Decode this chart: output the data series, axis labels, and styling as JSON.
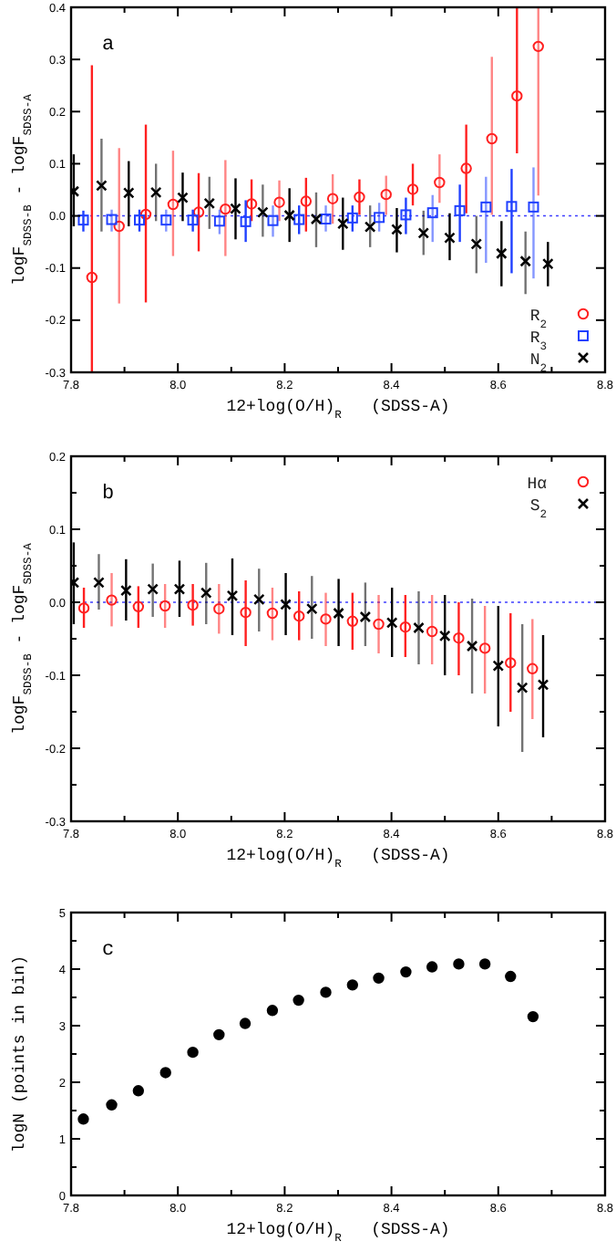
{
  "chart_data": [
    {
      "type": "scatter",
      "xlabel": "12+log(O/H)$_{R}$   (SDSS-A)",
      "ylabel": "logF$_{SDSS-B}$ - logF$_{SDSS-A}$",
      "annotations": [
        "a"
      ],
      "legend": "bottom right",
      "grid": false,
      "xlim": [
        7.8,
        8.8
      ],
      "xticks": [
        7.8,
        {
          "value": 7.9,
          "label": null
        },
        "8.0",
        {
          "value": 8.1,
          "label": null
        },
        8.2,
        {
          "value": 8.3,
          "label": null
        },
        8.4,
        {
          "value": 8.5,
          "label": null
        },
        8.6,
        {
          "value": 8.7,
          "label": null
        },
        8.8
      ],
      "ylim": [
        -0.3,
        0.4
      ],
      "yticks": [
        -0.3,
        -0.2,
        -0.1,
        "0.0",
        0.1,
        0.2,
        0.3,
        0.4
      ],
      "ref_lines": [
        {
          "axis": "y",
          "value": 0,
          "color": "#4040ff",
          "line_style": "dotted"
        }
      ],
      "series": [
        {
          "name": "R$_{2}$",
          "color": "#ff2020",
          "marker": "circle",
          "x": [
            7.839,
            7.89,
            7.94,
            7.991,
            8.039,
            8.089,
            8.138,
            8.19,
            8.24,
            8.29,
            8.34,
            8.39,
            8.44,
            8.49,
            8.54,
            8.588,
            8.635,
            8.675
          ],
          "values": [
            -0.118,
            -0.02,
            0.003,
            0.022,
            0.007,
            0.013,
            0.023,
            0.026,
            0.028,
            0.033,
            0.036,
            0.041,
            0.051,
            0.064,
            0.091,
            0.148,
            0.23,
            0.325
          ],
          "errors": [
            [
              -0.3,
              0.289
            ],
            [
              -0.168,
              0.13
            ],
            [
              -0.166,
              0.175
            ],
            [
              -0.077,
              0.125
            ],
            [
              -0.068,
              0.082
            ],
            [
              -0.077,
              0.107
            ],
            [
              -0.01,
              0.07
            ],
            [
              -0.01,
              0.068
            ],
            [
              -0.03,
              0.073
            ],
            [
              -0.015,
              0.08
            ],
            [
              0.002,
              0.07
            ],
            [
              0.002,
              0.077
            ],
            [
              0.02,
              0.1
            ],
            [
              0.025,
              0.118
            ],
            [
              0.005,
              0.175
            ],
            [
              0.002,
              0.305
            ],
            [
              0.12,
              0.4
            ],
            [
              0.039,
              0.4
            ]
          ]
        },
        {
          "name": "R$_{3}$",
          "color": "#2040ff",
          "marker": "square",
          "x": [
            7.823,
            7.876,
            7.928,
            7.978,
            8.028,
            8.078,
            8.127,
            8.178,
            8.227,
            8.277,
            8.327,
            8.377,
            8.427,
            8.477,
            8.528,
            8.577,
            8.625,
            8.666
          ],
          "values": [
            -0.008,
            -0.007,
            -0.008,
            -0.008,
            -0.008,
            -0.01,
            -0.011,
            -0.009,
            -0.007,
            -0.006,
            -0.004,
            -0.003,
            0.002,
            0.006,
            0.01,
            0.017,
            0.018,
            0.017
          ],
          "errors": [
            [
              -0.03,
              0.01
            ],
            [
              -0.03,
              0.012
            ],
            [
              -0.03,
              0.012
            ],
            [
              -0.03,
              0.012
            ],
            [
              -0.03,
              0.012
            ],
            [
              -0.035,
              0.012
            ],
            [
              -0.05,
              0.03
            ],
            [
              -0.04,
              0.02
            ],
            [
              -0.035,
              0.02
            ],
            [
              -0.03,
              0.02
            ],
            [
              -0.03,
              0.02
            ],
            [
              -0.03,
              0.025
            ],
            [
              -0.035,
              0.035
            ],
            [
              -0.05,
              0.04
            ],
            [
              -0.05,
              0.06
            ],
            [
              -0.09,
              0.075
            ],
            [
              -0.11,
              0.09
            ],
            [
              -0.12,
              0.093
            ]
          ]
        },
        {
          "name": "N$_{2}$",
          "color": "#000000",
          "marker": "cross",
          "x": [
            7.805,
            7.857,
            7.908,
            7.959,
            8.009,
            8.059,
            8.108,
            8.159,
            8.209,
            8.259,
            8.309,
            8.36,
            8.41,
            8.46,
            8.509,
            8.559,
            8.606,
            8.651,
            8.693
          ],
          "values": [
            0.047,
            0.058,
            0.044,
            0.045,
            0.035,
            0.024,
            0.014,
            0.007,
            0.001,
            -0.006,
            -0.015,
            -0.021,
            -0.026,
            -0.033,
            -0.042,
            -0.054,
            -0.072,
            -0.087,
            -0.092
          ],
          "errors": [
            [
              -0.02,
              0.118
            ],
            [
              -0.03,
              0.148
            ],
            [
              -0.02,
              0.105
            ],
            [
              -0.01,
              0.1
            ],
            [
              -0.01,
              0.083
            ],
            [
              -0.025,
              0.075
            ],
            [
              -0.045,
              0.072
            ],
            [
              -0.04,
              0.06
            ],
            [
              -0.05,
              0.053
            ],
            [
              -0.06,
              0.045
            ],
            [
              -0.065,
              0.035
            ],
            [
              -0.06,
              0.02
            ],
            [
              -0.07,
              0.015
            ],
            [
              -0.075,
              0.01
            ],
            [
              -0.085,
              0.005
            ],
            [
              -0.11,
              0.0
            ],
            [
              -0.135,
              -0.01
            ],
            [
              -0.15,
              -0.03
            ],
            [
              -0.135,
              -0.05
            ]
          ]
        }
      ]
    },
    {
      "type": "scatter",
      "xlabel": "12+log(O/H)$_{R}$   (SDSS-A)",
      "ylabel": "logF$_{SDSS-B}$ - logF$_{SDSS-A}$",
      "annotations": [
        "b"
      ],
      "legend": "top right",
      "grid": false,
      "xlim": [
        7.8,
        8.8
      ],
      "xticks": [
        7.8,
        {
          "value": 7.9,
          "label": null
        },
        "8.0",
        {
          "value": 8.1,
          "label": null
        },
        8.2,
        {
          "value": 8.3,
          "label": null
        },
        8.4,
        {
          "value": 8.5,
          "label": null
        },
        8.6,
        {
          "value": 8.7,
          "label": null
        },
        8.8
      ],
      "ylim": [
        -0.3,
        0.2
      ],
      "yticks": [
        -0.3,
        {
          "value": -0.25,
          "label": null
        },
        -0.2,
        {
          "value": -0.15,
          "label": null
        },
        -0.1,
        {
          "value": -0.05,
          "label": null
        },
        "0.0",
        {
          "value": 0.05,
          "label": null
        },
        0.1,
        {
          "value": 0.15,
          "label": null
        },
        0.2
      ],
      "ref_lines": [
        {
          "axis": "y",
          "value": 0,
          "color": "#4040ff",
          "line_style": "dotted"
        }
      ],
      "series": [
        {
          "name": "Hα",
          "color": "#ff2020",
          "marker": "circle",
          "x": [
            7.824,
            7.876,
            7.926,
            7.976,
            8.028,
            8.077,
            8.127,
            8.177,
            8.227,
            8.277,
            8.327,
            8.376,
            8.426,
            8.476,
            8.526,
            8.575,
            8.623,
            8.664
          ],
          "values": [
            -0.008,
            0.003,
            -0.006,
            -0.005,
            -0.004,
            -0.009,
            -0.014,
            -0.015,
            -0.019,
            -0.023,
            -0.026,
            -0.03,
            -0.034,
            -0.04,
            -0.049,
            -0.063,
            -0.083,
            -0.091
          ],
          "errors": [
            [
              -0.035,
              0.02
            ],
            [
              -0.033,
              0.04
            ],
            [
              -0.035,
              0.022
            ],
            [
              -0.035,
              0.025
            ],
            [
              -0.032,
              0.025
            ],
            [
              -0.043,
              0.025
            ],
            [
              -0.06,
              0.03
            ],
            [
              -0.052,
              0.02
            ],
            [
              -0.052,
              0.015
            ],
            [
              -0.06,
              0.013
            ],
            [
              -0.065,
              0.013
            ],
            [
              -0.07,
              0.01
            ],
            [
              -0.075,
              0.01
            ],
            [
              -0.085,
              0.01
            ],
            [
              -0.1,
              0.0
            ],
            [
              -0.125,
              -0.005
            ],
            [
              -0.15,
              -0.015
            ],
            [
              -0.16,
              -0.023
            ]
          ]
        },
        {
          "name": "S$_{2}$",
          "color": "#000000",
          "marker": "cross",
          "x": [
            7.805,
            7.852,
            7.903,
            7.953,
            8.003,
            8.053,
            8.102,
            8.152,
            8.202,
            8.251,
            8.301,
            8.351,
            8.401,
            8.451,
            8.5,
            8.551,
            8.6,
            8.645,
            8.684
          ],
          "values": [
            0.027,
            0.027,
            0.016,
            0.018,
            0.018,
            0.013,
            0.009,
            0.004,
            -0.003,
            -0.009,
            -0.015,
            -0.02,
            -0.028,
            -0.035,
            -0.046,
            -0.06,
            -0.087,
            -0.117,
            -0.113
          ],
          "errors": [
            [
              -0.03,
              0.082
            ],
            [
              -0.01,
              0.066
            ],
            [
              -0.025,
              0.059
            ],
            [
              -0.02,
              0.053
            ],
            [
              -0.02,
              0.057
            ],
            [
              -0.03,
              0.054
            ],
            [
              -0.045,
              0.06
            ],
            [
              -0.04,
              0.046
            ],
            [
              -0.045,
              0.04
            ],
            [
              -0.05,
              0.036
            ],
            [
              -0.06,
              0.032
            ],
            [
              -0.06,
              0.027
            ],
            [
              -0.075,
              0.02
            ],
            [
              -0.085,
              0.015
            ],
            [
              -0.1,
              0.01
            ],
            [
              -0.125,
              0.005
            ],
            [
              -0.17,
              -0.005
            ],
            [
              -0.205,
              -0.03
            ],
            [
              -0.185,
              -0.045
            ]
          ]
        }
      ]
    },
    {
      "type": "scatter",
      "xlabel": "12+log(O/H)$_{R}$   (SDSS-A)",
      "ylabel": "logN (points in bin)",
      "annotations": [
        "c"
      ],
      "grid": false,
      "marker": "circle",
      "xlim": [
        7.8,
        8.8
      ],
      "xticks": [
        7.8,
        {
          "value": 7.9,
          "label": null
        },
        "8.0",
        {
          "value": 8.1,
          "label": null
        },
        8.2,
        {
          "value": 8.3,
          "label": null
        },
        8.4,
        {
          "value": 8.5,
          "label": null
        },
        8.6,
        {
          "value": 8.7,
          "label": null
        },
        8.8
      ],
      "ylim": [
        0,
        5
      ],
      "yticks": [
        0,
        {
          "value": 0.5,
          "label": null
        },
        1,
        {
          "value": 1.5,
          "label": null
        },
        2,
        {
          "value": 2.5,
          "label": null
        },
        3,
        {
          "value": 3.5,
          "label": null
        },
        4,
        {
          "value": 4.5,
          "label": null
        },
        5
      ],
      "series": [
        {
          "color": "#000000",
          "x": [
            7.823,
            7.876,
            7.926,
            7.977,
            8.028,
            8.077,
            8.126,
            8.177,
            8.226,
            8.277,
            8.327,
            8.376,
            8.427,
            8.476,
            8.526,
            8.575,
            8.623,
            8.665
          ],
          "values": [
            1.35,
            1.6,
            1.85,
            2.17,
            2.53,
            2.84,
            3.04,
            3.27,
            3.45,
            3.59,
            3.72,
            3.84,
            3.95,
            4.04,
            4.09,
            4.09,
            3.87,
            3.16
          ]
        }
      ]
    }
  ]
}
